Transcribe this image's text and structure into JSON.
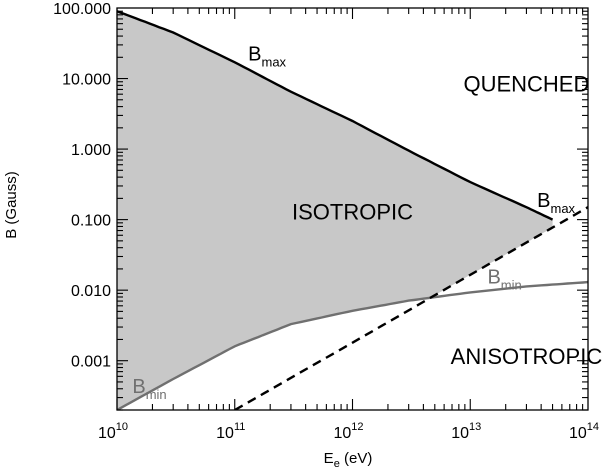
{
  "chart_data": {
    "type": "line",
    "x_scale": "log",
    "y_scale": "log",
    "xlim": [
      10000000000.0,
      100000000000000.0
    ],
    "ylim": [
      0.0002,
      100
    ],
    "xlabel_main": "E",
    "xlabel_sub": "e",
    "xlabel_unit": " (eV)",
    "ylabel": "B (Gauss)",
    "x_ticks": [
      {
        "value": 10000000000.0,
        "base": "10",
        "exp": "10"
      },
      {
        "value": 100000000000.0,
        "base": "10",
        "exp": "11"
      },
      {
        "value": 1000000000000.0,
        "base": "10",
        "exp": "12"
      },
      {
        "value": 10000000000000.0,
        "base": "10",
        "exp": "13"
      },
      {
        "value": 100000000000000.0,
        "base": "10",
        "exp": "14"
      }
    ],
    "y_ticks": [
      {
        "value": 100,
        "label": "100.000"
      },
      {
        "value": 10,
        "label": "10.000"
      },
      {
        "value": 1,
        "label": "1.000"
      },
      {
        "value": 0.1,
        "label": "0.100"
      },
      {
        "value": 0.01,
        "label": "0.010"
      },
      {
        "value": 0.001,
        "label": "0.001"
      }
    ],
    "grid": false,
    "colors": {
      "fill": "#c8c8c8",
      "bmax": "#000000",
      "bmin": "#707070",
      "boundary": "#000000"
    },
    "series": [
      {
        "key": "bmax",
        "style": "solid",
        "x": [
          10000000000.0,
          30000000000.0,
          100000000000.0,
          300000000000.0,
          1000000000000.0,
          3000000000000.0,
          10000000000000.0,
          30000000000000.0,
          50000000000000.0
        ],
        "y": [
          90,
          45,
          17,
          6.5,
          2.5,
          0.95,
          0.34,
          0.15,
          0.1
        ]
      },
      {
        "key": "bmin",
        "style": "solid",
        "x": [
          10000000000.0,
          30000000000.0,
          100000000000.0,
          300000000000.0,
          1000000000000.0,
          3000000000000.0,
          10000000000000.0,
          30000000000000.0,
          100000000000000.0
        ],
        "y": [
          0.0002,
          0.00055,
          0.0016,
          0.0033,
          0.0051,
          0.0071,
          0.0093,
          0.0113,
          0.013
        ]
      },
      {
        "key": "boundary",
        "style": "dashed",
        "x": [
          100000000000.0,
          1000000000000.0,
          10000000000000.0,
          100000000000000.0
        ],
        "y": [
          0.0002,
          0.0018,
          0.0165,
          0.15
        ]
      }
    ],
    "region_labels": [
      {
        "text": "QUENCHED",
        "x": 30000000000000.0,
        "y": 6.5
      },
      {
        "text": "ISOTROPIC",
        "x": 1000000000000.0,
        "y": 0.1
      },
      {
        "text": "ANISOTROPIC",
        "x": 30000000000000.0,
        "y": 0.0009
      }
    ],
    "curve_labels": [
      {
        "main": "B",
        "sub": "max",
        "series": "bmax",
        "x": 130000000000.0,
        "y": 18
      },
      {
        "main": "B",
        "sub": "max",
        "series": "bmax",
        "x": 37000000000000.0,
        "y": 0.15
      },
      {
        "main": "B",
        "sub": "min",
        "series": "bmin",
        "x": 14000000000000.0,
        "y": 0.0125
      },
      {
        "main": "B",
        "sub": "min",
        "series": "bmin",
        "x": 13500000000.0,
        "y": 0.00035
      }
    ]
  }
}
